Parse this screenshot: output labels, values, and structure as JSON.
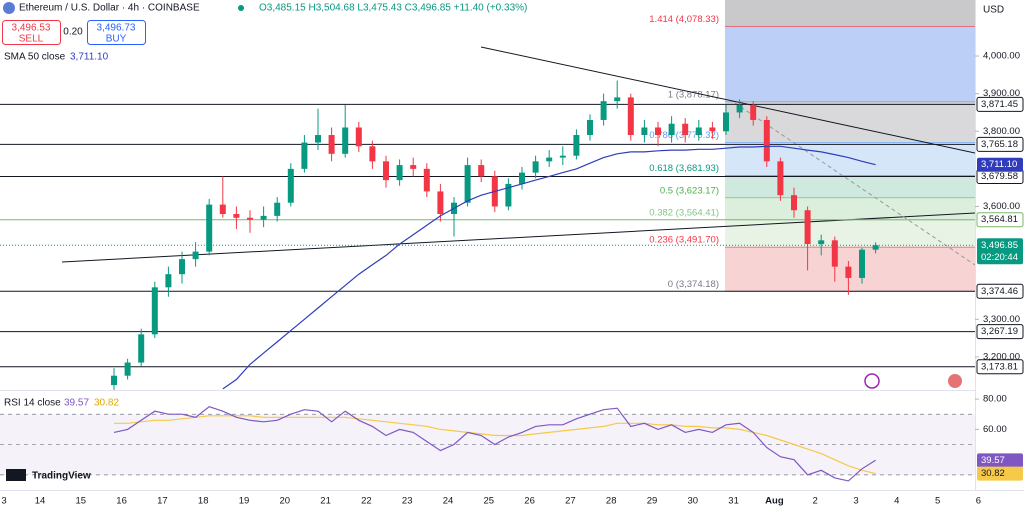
{
  "header": {
    "title": "Ethereum / U.S. Dollar · 4h · COINBASE",
    "ohlc": "O3,485.15 H3,504.68 L3,475.43 C3,496.85 +11.40 (+0.33%)",
    "sell_price": "3,496.53",
    "sell": "SELL",
    "spread": "0.20",
    "buy_price": "3,496.73",
    "buy": "BUY",
    "sma_label": "SMA 50 close",
    "sma_value": "3,711.10",
    "currency": "USD",
    "logo": "TradingView"
  },
  "chart_data": {
    "type": "candlestick",
    "up_color": "#089981",
    "down_color": "#f23645",
    "sma_color": "#2f3dbd",
    "ylim": [
      3112,
      4149
    ],
    "yticks": [
      {
        "value": 4000,
        "label": "4,000.00"
      },
      {
        "value": 3900,
        "label": "3,900.00"
      },
      {
        "value": 3800,
        "label": "3,800.00"
      },
      {
        "value": 3600,
        "label": "3,600.00"
      },
      {
        "value": 3300,
        "label": "3,300.00"
      },
      {
        "value": 3200,
        "label": "3,200.00"
      }
    ],
    "levels": [
      {
        "value": 3871.45,
        "label": "3,871.45",
        "color": "#131722"
      },
      {
        "value": 3765.18,
        "label": "3,765.18",
        "color": "#131722"
      },
      {
        "value": 3679.58,
        "label": "3,679.58",
        "color": "#131722"
      },
      {
        "value": 3564.81,
        "label": "3,564.81",
        "color": "#7cb86a"
      },
      {
        "value": 3374.46,
        "label": "3,374.46",
        "color": "#131722"
      },
      {
        "value": 3267.19,
        "label": "3,267.19",
        "color": "#131722"
      },
      {
        "value": 3173.81,
        "label": "3,173.81",
        "color": "#131722"
      }
    ],
    "sma_marker": {
      "value": 3711.1,
      "label": "3,711.10"
    },
    "last_price": {
      "value": 3496.85,
      "label": "3,496.85",
      "countdown": "02:20:44"
    },
    "fib": {
      "top_color": "#c9c9cc",
      "levels": [
        {
          "value": 4078.33,
          "label": "1.414 (4,078.33)",
          "color": "#bcd0f7",
          "text_color": "#f23645"
        },
        {
          "value": 3878.17,
          "label": "1 (3,878.17)",
          "color": "#d9d9dc",
          "text_color": "#787b86"
        },
        {
          "value": 3770.32,
          "label": "0.786 (3,770.32)",
          "color": "#d5e6f8",
          "text_color": "#5b9cf6"
        },
        {
          "value": 3681.93,
          "label": "0.618 (3,681.93)",
          "color": "#cfe9df",
          "text_color": "#089981"
        },
        {
          "value": 3623.17,
          "label": "0.5 (3,623.17)",
          "color": "#dcefdc",
          "text_color": "#4caf50"
        },
        {
          "value": 3564.41,
          "label": "0.382 (3,564.41)",
          "color": "#e8f3e6",
          "text_color": "#81c784"
        },
        {
          "value": 3491.7,
          "label": "0.236 (3,491.70)",
          "color": "#f8d3d3",
          "text_color": "#f23645"
        },
        {
          "value": 3374.18,
          "label": "0 (3,374.18)",
          "color": null,
          "text_color": "#787b86"
        }
      ]
    },
    "candles": [
      [
        3125,
        3170,
        3110,
        3150
      ],
      [
        3150,
        3195,
        3140,
        3185
      ],
      [
        3185,
        3275,
        3175,
        3260
      ],
      [
        3260,
        3400,
        3250,
        3385
      ],
      [
        3385,
        3440,
        3360,
        3420
      ],
      [
        3420,
        3480,
        3395,
        3460
      ],
      [
        3460,
        3505,
        3440,
        3480
      ],
      [
        3480,
        3620,
        3470,
        3605
      ],
      [
        3605,
        3680,
        3570,
        3580
      ],
      [
        3580,
        3600,
        3540,
        3570
      ],
      [
        3570,
        3590,
        3530,
        3565
      ],
      [
        3565,
        3600,
        3545,
        3575
      ],
      [
        3575,
        3625,
        3560,
        3610
      ],
      [
        3610,
        3715,
        3600,
        3700
      ],
      [
        3700,
        3790,
        3690,
        3770
      ],
      [
        3770,
        3860,
        3750,
        3790
      ],
      [
        3790,
        3810,
        3720,
        3740
      ],
      [
        3740,
        3870,
        3730,
        3810
      ],
      [
        3810,
        3825,
        3745,
        3760
      ],
      [
        3760,
        3775,
        3700,
        3720
      ],
      [
        3720,
        3735,
        3650,
        3670
      ],
      [
        3670,
        3725,
        3655,
        3710
      ],
      [
        3710,
        3730,
        3680,
        3700
      ],
      [
        3700,
        3715,
        3625,
        3640
      ],
      [
        3640,
        3660,
        3560,
        3580
      ],
      [
        3580,
        3625,
        3520,
        3610
      ],
      [
        3610,
        3730,
        3600,
        3710
      ],
      [
        3710,
        3725,
        3665,
        3680
      ],
      [
        3680,
        3695,
        3585,
        3600
      ],
      [
        3600,
        3675,
        3590,
        3660
      ],
      [
        3660,
        3705,
        3645,
        3690
      ],
      [
        3690,
        3735,
        3675,
        3720
      ],
      [
        3720,
        3750,
        3705,
        3730
      ],
      [
        3730,
        3760,
        3710,
        3735
      ],
      [
        3735,
        3805,
        3725,
        3790
      ],
      [
        3790,
        3845,
        3775,
        3830
      ],
      [
        3830,
        3900,
        3815,
        3880
      ],
      [
        3880,
        3935,
        3860,
        3890
      ],
      [
        3890,
        3900,
        3775,
        3790
      ],
      [
        3790,
        3830,
        3770,
        3810
      ],
      [
        3810,
        3825,
        3760,
        3790
      ],
      [
        3790,
        3840,
        3770,
        3820
      ],
      [
        3820,
        3835,
        3770,
        3790
      ],
      [
        3790,
        3830,
        3775,
        3810
      ],
      [
        3810,
        3825,
        3780,
        3800
      ],
      [
        3800,
        3870,
        3790,
        3850
      ],
      [
        3850,
        3885,
        3835,
        3870
      ],
      [
        3870,
        3880,
        3815,
        3830
      ],
      [
        3830,
        3840,
        3705,
        3720
      ],
      [
        3720,
        3730,
        3615,
        3630
      ],
      [
        3630,
        3650,
        3570,
        3590
      ],
      [
        3590,
        3600,
        3430,
        3500
      ],
      [
        3500,
        3525,
        3470,
        3510
      ],
      [
        3510,
        3520,
        3400,
        3440
      ],
      [
        3440,
        3455,
        3365,
        3410
      ],
      [
        3410,
        3490,
        3395,
        3485.15
      ],
      [
        3485.15,
        3504.68,
        3475.43,
        3496.85
      ]
    ],
    "sma": [
      null,
      null,
      null,
      null,
      null,
      null,
      null,
      null,
      3115,
      3140,
      3180,
      3210,
      3240,
      3270,
      3300,
      3330,
      3360,
      3390,
      3420,
      3445,
      3470,
      3500,
      3525,
      3550,
      3575,
      3595,
      3615,
      3630,
      3640,
      3650,
      3660,
      3670,
      3680,
      3690,
      3700,
      3715,
      3730,
      3740,
      3745,
      3745,
      3748,
      3750,
      3750,
      3752,
      3752,
      3755,
      3758,
      3758,
      3760,
      3760,
      3755,
      3750,
      3745,
      3738,
      3730,
      3720,
      3711.1
    ],
    "x_labels": [
      "3",
      "14",
      "15",
      "16",
      "17",
      "18",
      "19",
      "20",
      "21",
      "22",
      "23",
      "24",
      "25",
      "26",
      "27",
      "28",
      "29",
      "30",
      "31",
      "Aug",
      "2",
      "3",
      "4",
      "5",
      "6"
    ]
  },
  "rsi": {
    "label": "RSI 14 close",
    "value_label": "39.57",
    "ma_label": "30.82",
    "color": "#7e57c2",
    "ma_color": "#f7c948",
    "ylim": [
      20,
      86
    ],
    "yticks": [
      {
        "value": 80,
        "label": "80.00"
      },
      {
        "value": 60,
        "label": "60.00"
      }
    ],
    "bands": [
      70,
      50,
      30
    ],
    "values": [
      58,
      60,
      66,
      72,
      70,
      70,
      68,
      75,
      72,
      68,
      66,
      65,
      66,
      70,
      73,
      72,
      65,
      72,
      66,
      62,
      56,
      60,
      58,
      52,
      46,
      50,
      58,
      56,
      50,
      55,
      58,
      62,
      63,
      63,
      67,
      70,
      73,
      74,
      62,
      64,
      60,
      63,
      58,
      60,
      58,
      63,
      64,
      58,
      48,
      42,
      40,
      30,
      33,
      28,
      26,
      34,
      39.57
    ],
    "ma": [
      64,
      64,
      65,
      66,
      66,
      67,
      68,
      69,
      69,
      69,
      69,
      68,
      68,
      68,
      68,
      68,
      68,
      68,
      67,
      66,
      65,
      64,
      63,
      62,
      60,
      59,
      58,
      57,
      56,
      56,
      56,
      57,
      58,
      59,
      60,
      61,
      62,
      64,
      64,
      64,
      63,
      63,
      62,
      62,
      61,
      61,
      60,
      58,
      56,
      53,
      50,
      47,
      44,
      40,
      36,
      33,
      30.82
    ]
  }
}
